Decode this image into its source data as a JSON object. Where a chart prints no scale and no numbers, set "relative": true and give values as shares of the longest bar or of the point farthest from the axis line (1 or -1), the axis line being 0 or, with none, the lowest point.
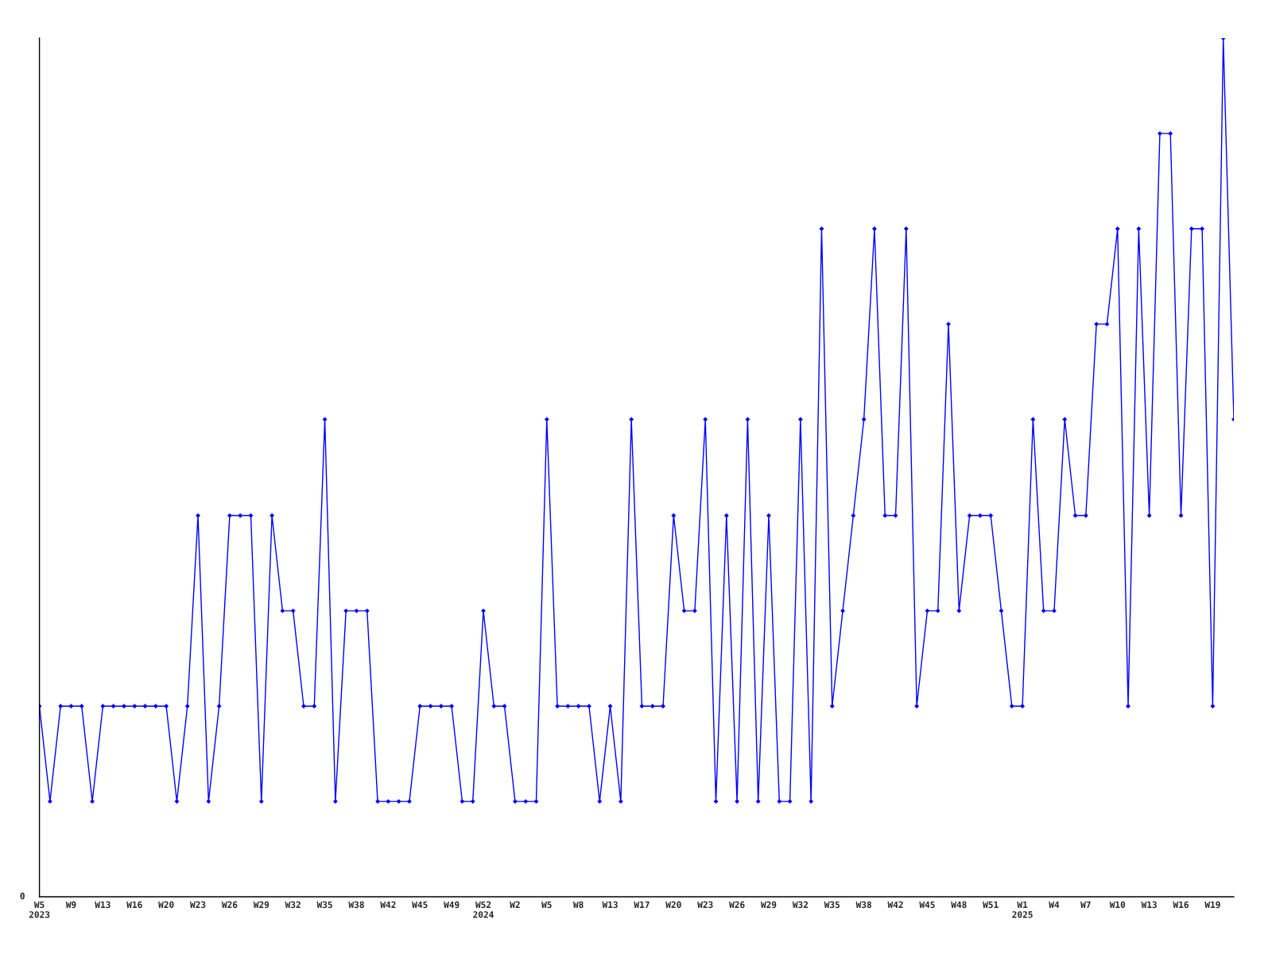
{
  "chart_data": {
    "type": "line",
    "relative": true,
    "marker": "diamond",
    "line_style": "solid",
    "grid": false,
    "legend": false,
    "categories": [
      "W5\n2023",
      null,
      null,
      "W9",
      null,
      null,
      "W13",
      null,
      null,
      "W16",
      null,
      null,
      "W20",
      null,
      null,
      "W23",
      null,
      null,
      "W26",
      null,
      null,
      "W29",
      null,
      null,
      "W32",
      null,
      null,
      "W35",
      null,
      null,
      "W38",
      null,
      null,
      "W42",
      null,
      null,
      "W45",
      null,
      null,
      "W49",
      null,
      null,
      "W52\n2024",
      null,
      null,
      "W2",
      null,
      null,
      "W5",
      null,
      null,
      "W8",
      null,
      null,
      "W13",
      null,
      null,
      "W17",
      null,
      null,
      "W20",
      null,
      null,
      "W23",
      null,
      null,
      "W26",
      null,
      null,
      "W29",
      null,
      null,
      "W32",
      null,
      null,
      "W35",
      null,
      null,
      "W38",
      null,
      null,
      "W42",
      null,
      null,
      "W45",
      null,
      null,
      "W48",
      null,
      null,
      "W51",
      null,
      null,
      "W1\n2025",
      null,
      null,
      "W4",
      null,
      null,
      "W7",
      null,
      null,
      "W10",
      null,
      null,
      "W13",
      null,
      null,
      "W16",
      null,
      null,
      "W19",
      null,
      null
    ],
    "series": [
      {
        "color": "#0000ff",
        "values": [
          0.222,
          0.111,
          0.222,
          0.222,
          0.222,
          0.111,
          0.222,
          0.222,
          0.222,
          0.222,
          0.222,
          0.222,
          0.222,
          0.111,
          0.222,
          0.444,
          0.111,
          0.222,
          0.444,
          0.444,
          0.444,
          0.111,
          0.444,
          0.333,
          0.333,
          0.222,
          0.222,
          0.556,
          0.111,
          0.333,
          0.333,
          0.333,
          0.111,
          0.111,
          0.111,
          0.111,
          0.222,
          0.222,
          0.222,
          0.222,
          0.111,
          0.111,
          0.333,
          0.222,
          0.222,
          0.111,
          0.111,
          0.111,
          0.556,
          0.222,
          0.222,
          0.222,
          0.222,
          0.111,
          0.222,
          0.111,
          0.556,
          0.222,
          0.222,
          0.222,
          0.444,
          0.333,
          0.333,
          0.556,
          0.111,
          0.444,
          0.111,
          0.556,
          0.111,
          0.444,
          0.111,
          0.111,
          0.556,
          0.111,
          0.778,
          0.222,
          0.333,
          0.444,
          0.556,
          0.778,
          0.444,
          0.444,
          0.778,
          0.222,
          0.333,
          0.333,
          0.667,
          0.333,
          0.444,
          0.444,
          0.444,
          0.333,
          0.222,
          0.222,
          0.556,
          0.333,
          0.333,
          0.556,
          0.444,
          0.444,
          0.667,
          0.667,
          0.778,
          0.222,
          0.778,
          0.444,
          0.889,
          0.889,
          0.444,
          0.778,
          0.778,
          0.222,
          1,
          0.556
        ]
      }
    ],
    "annotations": [
      "0"
    ]
  }
}
